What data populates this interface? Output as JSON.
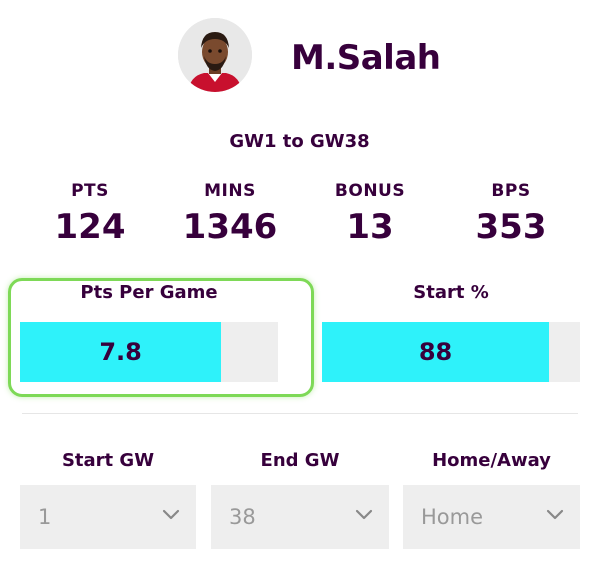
{
  "player": {
    "name": "M.Salah",
    "avatar_icon": "player-photo-icon"
  },
  "range": "GW1 to GW38",
  "stats": [
    {
      "label": "PTS",
      "value": "124"
    },
    {
      "label": "MINS",
      "value": "1346"
    },
    {
      "label": "BONUS",
      "value": "13"
    },
    {
      "label": "BPS",
      "value": "353"
    }
  ],
  "metrics": {
    "pts_per_game": {
      "label": "Pts Per Game",
      "value": "7.8",
      "fill_fraction": 0.78
    },
    "start_pct": {
      "label": "Start %",
      "value": "88",
      "fill_fraction": 0.88
    }
  },
  "filters": {
    "start_gw": {
      "label": "Start GW",
      "value": "1"
    },
    "end_gw": {
      "label": "End GW",
      "value": "38"
    },
    "home_away": {
      "label": "Home/Away",
      "value": "Home"
    }
  },
  "colors": {
    "brand": "#37003c",
    "bar_fill": "#2ef2fa",
    "bar_track": "#eeeeee",
    "highlight": "#7ed957",
    "select_text": "#999999"
  }
}
